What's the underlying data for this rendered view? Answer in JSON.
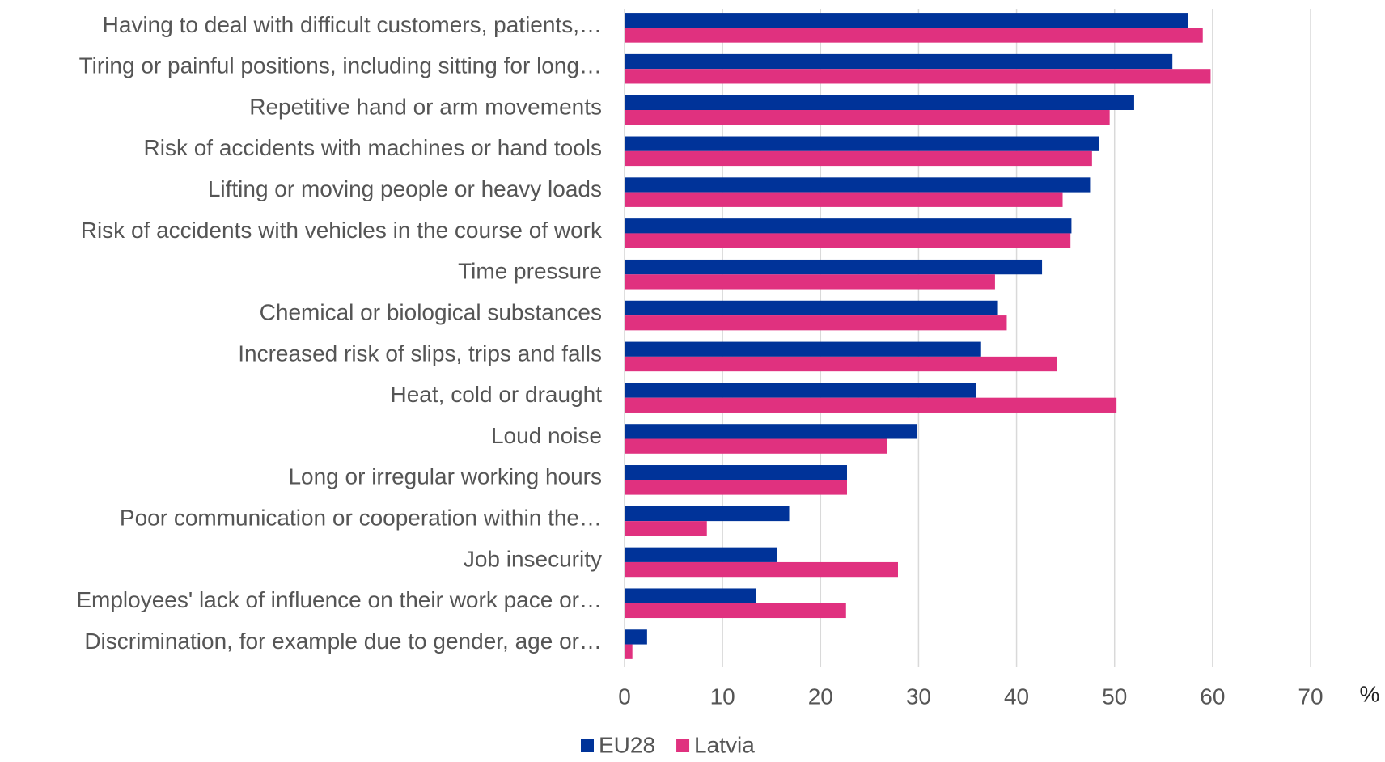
{
  "chart_data": {
    "type": "bar",
    "orientation": "horizontal",
    "categories": [
      "Having to deal with difficult customers, patients,…",
      "Tiring or painful positions, including sitting for long…",
      "Repetitive hand or arm movements",
      "Risk of accidents with machines or hand tools",
      "Lifting or moving people or heavy loads",
      "Risk of accidents with vehicles in the course of work",
      "Time pressure",
      "Chemical or biological substances",
      "Increased risk of slips, trips and falls",
      "Heat, cold or draught",
      "Loud noise",
      "Long or irregular working hours",
      "Poor communication or cooperation within the…",
      "Job insecurity",
      "Employees' lack of influence on their work pace or…",
      "Discrimination, for example due to gender, age or…"
    ],
    "series": [
      {
        "name": "EU28",
        "color": "#003399",
        "values": [
          57.5,
          55.9,
          52.0,
          48.4,
          47.5,
          45.6,
          42.6,
          38.1,
          36.3,
          35.9,
          29.8,
          22.7,
          16.8,
          15.6,
          13.4,
          2.3
        ]
      },
      {
        "name": "Latvia",
        "color": "#e0317f",
        "values": [
          59.0,
          59.8,
          49.5,
          47.7,
          44.7,
          45.5,
          37.8,
          39.0,
          44.1,
          50.2,
          26.8,
          22.7,
          8.4,
          27.9,
          22.6,
          0.8
        ]
      }
    ],
    "xlabel": "%",
    "xlim": [
      0,
      70
    ],
    "xticks": [
      0,
      10,
      20,
      30,
      40,
      50,
      60,
      70
    ],
    "grid": true,
    "legend": "bottom"
  }
}
